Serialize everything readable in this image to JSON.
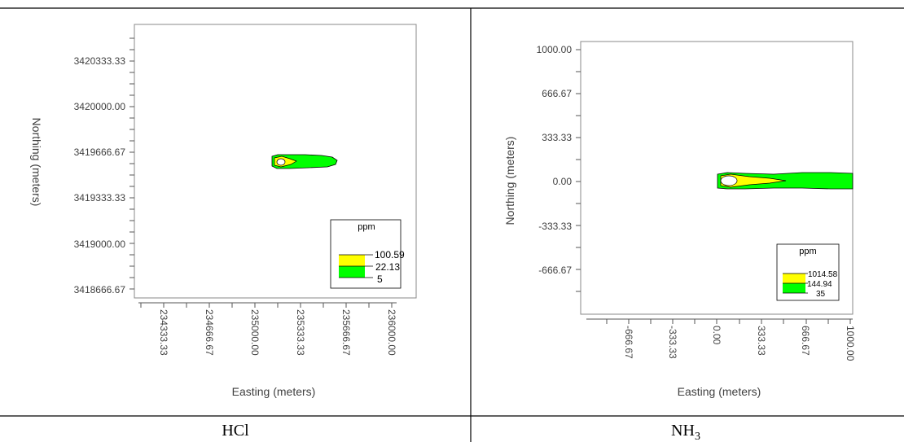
{
  "chart_data": [
    {
      "type": "contour",
      "caption": "HCl",
      "xlabel": "Easting (meters)",
      "ylabel": "Northing (meters)",
      "xticks": [
        "234333.33",
        "234666.67",
        "235000.00",
        "235333.33",
        "235666.67",
        "236000.00"
      ],
      "yticks": [
        "3420333.33",
        "3420000.00",
        "3419666.67",
        "3419333.33",
        "3419000.00",
        "3418666.67"
      ],
      "legend": {
        "title": "ppm",
        "levels": [
          {
            "value": "100.59",
            "color": "#ffff00"
          },
          {
            "value": "22.13",
            "color": "#00ff00"
          },
          {
            "value": "5",
            "color": "#00ff00"
          }
        ]
      }
    },
    {
      "type": "contour",
      "caption": "NH3",
      "caption_base": "NH",
      "caption_sub": "3",
      "xlabel": "Easting (meters)",
      "ylabel": "Northing (meters)",
      "xticks": [
        "-666.67",
        "-333.33",
        "0.00",
        "333.33",
        "666.67",
        "1000.00"
      ],
      "yticks": [
        "1000.00",
        "666.67",
        "333.33",
        "0.00",
        "-333.33",
        "-666.67"
      ],
      "legend": {
        "title": "ppm",
        "levels": [
          {
            "value": "1014.58",
            "color": "#ffff00"
          },
          {
            "value": "144.94",
            "color": "#00ff00"
          },
          {
            "value": "35",
            "color": "#00ff00"
          }
        ]
      }
    }
  ]
}
